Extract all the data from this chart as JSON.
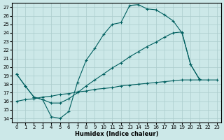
{
  "xlabel": "Humidex (Indice chaleur)",
  "xlim": [
    -0.5,
    23.5
  ],
  "ylim": [
    13.5,
    27.5
  ],
  "xticks": [
    0,
    1,
    2,
    3,
    4,
    5,
    6,
    7,
    8,
    9,
    10,
    11,
    12,
    13,
    14,
    15,
    16,
    17,
    18,
    19,
    20,
    21,
    22,
    23
  ],
  "yticks": [
    14,
    15,
    16,
    17,
    18,
    19,
    20,
    21,
    22,
    23,
    24,
    25,
    26,
    27
  ],
  "background_color": "#cce8e8",
  "grid_color": "#aacccc",
  "line_color": "#005f5f",
  "line1": {
    "x": [
      0,
      1,
      2,
      3,
      4,
      5,
      6,
      7,
      8,
      9,
      10,
      11,
      12,
      13,
      14,
      15,
      16,
      17,
      18,
      19,
      20,
      21
    ],
    "y": [
      19.2,
      17.8,
      16.5,
      16.2,
      14.2,
      14.0,
      14.8,
      18.2,
      20.8,
      22.2,
      23.8,
      25.0,
      25.2,
      27.2,
      27.3,
      26.8,
      26.7,
      26.1,
      25.4,
      24.0,
      20.3,
      18.6
    ]
  },
  "line2": {
    "x": [
      0,
      1,
      2,
      3,
      4,
      5,
      6,
      7,
      8,
      9,
      10,
      11,
      12,
      13,
      14,
      15,
      16,
      17,
      18,
      19,
      20,
      21,
      22,
      23
    ],
    "y": [
      16.0,
      16.2,
      16.3,
      16.5,
      16.6,
      16.8,
      16.9,
      17.1,
      17.2,
      17.4,
      17.5,
      17.6,
      17.8,
      17.9,
      18.0,
      18.1,
      18.2,
      18.3,
      18.4,
      18.5,
      18.5,
      18.5,
      18.5,
      18.5
    ]
  },
  "line3": {
    "x": [
      0,
      1,
      2,
      3,
      4,
      5,
      6,
      7,
      8,
      9,
      10,
      11,
      12,
      13,
      14,
      15,
      16,
      17,
      18,
      19,
      20,
      21
    ],
    "y": [
      19.2,
      17.8,
      16.5,
      16.2,
      15.8,
      15.8,
      16.3,
      17.0,
      17.8,
      18.5,
      19.2,
      19.9,
      20.5,
      21.2,
      21.8,
      22.4,
      22.9,
      23.5,
      24.0,
      24.1,
      20.3,
      18.6
    ]
  }
}
